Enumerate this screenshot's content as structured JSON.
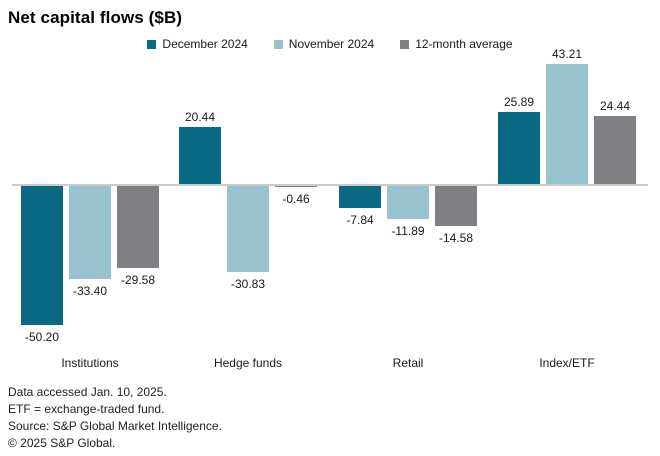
{
  "title": "Net capital flows ($B)",
  "chart_data": {
    "type": "bar",
    "title": "Net capital flows ($B)",
    "categories": [
      "Institutions",
      "Hedge funds",
      "Retail",
      "Index/ETF"
    ],
    "series": [
      {
        "name": "December 2024",
        "color": "#0a6982",
        "values": [
          -50.2,
          20.44,
          -7.84,
          25.89
        ]
      },
      {
        "name": "November 2024",
        "color": "#98c3cf",
        "values": [
          -33.4,
          -30.83,
          -11.89,
          43.21
        ]
      },
      {
        "name": "12-month average",
        "color": "#808084",
        "values": [
          -29.58,
          -0.46,
          -14.58,
          24.44
        ]
      }
    ],
    "xlabel": "",
    "ylabel": "",
    "baseline": 0,
    "grid": false,
    "legend_position": "top",
    "value_labels": true,
    "value_label_decimals": 2,
    "axis_line_color": "#cbcbcb"
  },
  "footnotes": [
    "Data accessed Jan. 10, 2025.",
    "ETF = exchange-traded fund.",
    "Source: S&P Global Market Intelligence.",
    "© 2025 S&P Global."
  ]
}
